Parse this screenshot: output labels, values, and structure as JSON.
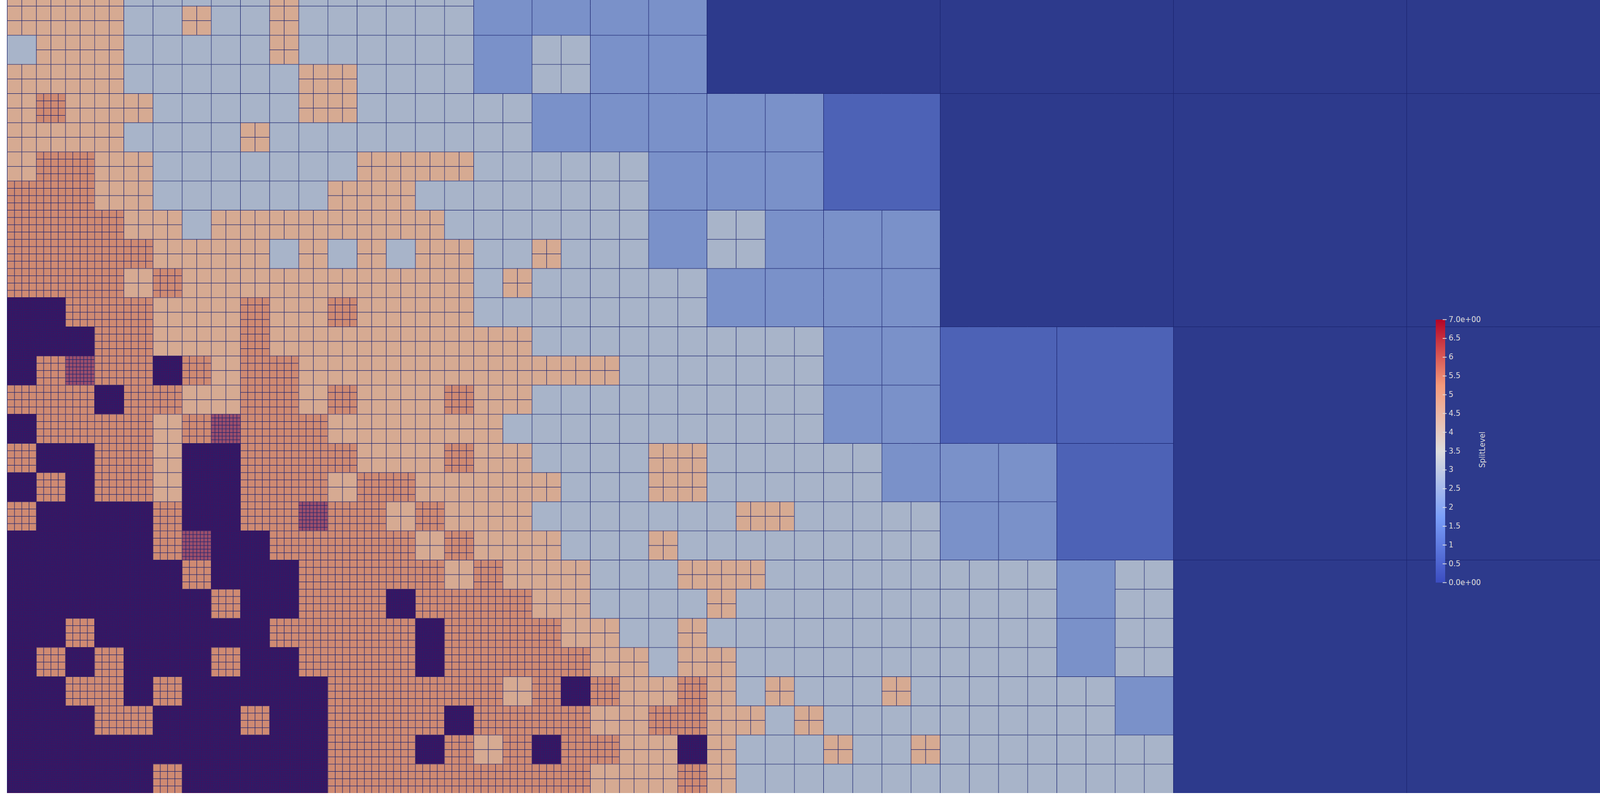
{
  "chart_data": {
    "type": "heatmap",
    "colors": [
      "#2d3a8c",
      "#4d62b6",
      "#7a91c9",
      "#a8b4c9",
      "#d6aa92",
      "#cf8a72",
      "#9c4e6a",
      "#4a0c58"
    ],
    "color_bar": {
      "title": "SplitLevel",
      "lim": [
        0,
        7
      ],
      "ticks": [
        {
          "value": 7,
          "label": "7.0e+00"
        },
        6.5,
        6,
        5.5,
        5,
        4.5,
        4,
        3.5,
        3,
        2.5,
        2,
        1.5,
        1,
        0.5,
        {
          "value": 0,
          "label": "0.0e+00"
        }
      ]
    },
    "cells": [
      [
        4,
        4,
        4,
        4,
        3,
        3,
        3,
        3,
        3,
        4,
        3,
        3,
        3,
        3,
        3,
        3,
        2,
        2,
        2,
        2,
        2,
        2,
        2,
        2,
        0,
        0,
        0,
        0,
        0,
        0,
        0,
        0,
        0,
        0,
        0,
        0,
        0,
        0,
        0,
        0,
        0,
        0,
        0,
        0,
        0,
        0,
        0,
        0,
        0,
        0,
        0,
        0,
        0,
        0,
        0
      ],
      [
        4,
        4,
        4,
        4,
        3,
        3,
        4,
        3,
        3,
        4,
        3,
        3,
        3,
        3,
        3,
        3,
        2,
        2,
        2,
        2,
        2,
        2,
        2,
        2,
        0,
        0,
        0,
        0,
        0,
        0,
        0,
        0,
        0,
        0,
        0,
        0,
        0,
        0,
        0,
        0,
        0,
        0,
        0,
        0,
        0,
        0,
        0,
        0,
        0,
        0,
        0,
        0,
        0,
        0,
        0
      ],
      [
        3,
        4,
        4,
        4,
        3,
        3,
        3,
        3,
        3,
        4,
        3,
        3,
        3,
        3,
        3,
        3,
        2,
        2,
        3,
        3,
        2,
        2,
        2,
        2,
        0,
        0,
        0,
        0,
        0,
        0,
        0,
        0,
        0,
        0,
        0,
        0,
        0,
        0,
        0,
        0,
        0,
        0,
        0,
        0,
        0,
        0,
        0,
        0,
        0,
        0,
        0,
        0,
        0,
        0,
        0
      ],
      [
        4,
        4,
        4,
        4,
        3,
        3,
        3,
        3,
        3,
        3,
        4,
        4,
        3,
        3,
        3,
        3,
        2,
        2,
        3,
        3,
        2,
        2,
        2,
        2,
        0,
        0,
        0,
        0,
        0,
        0,
        0,
        0,
        0,
        0,
        0,
        0,
        0,
        0,
        0,
        0,
        0,
        0,
        0,
        0,
        0,
        0,
        0,
        0,
        0,
        0,
        0,
        0,
        0,
        0,
        0
      ],
      [
        4,
        5,
        4,
        4,
        4,
        3,
        3,
        3,
        3,
        3,
        4,
        4,
        3,
        3,
        3,
        3,
        3,
        3,
        2,
        2,
        2,
        2,
        2,
        2,
        2,
        2,
        2,
        2,
        1,
        1,
        1,
        1,
        0,
        0,
        0,
        0,
        0,
        0,
        0,
        0,
        0,
        0,
        0,
        0,
        0,
        0,
        0,
        0,
        0,
        0,
        0,
        0,
        0,
        0,
        0
      ],
      [
        4,
        4,
        4,
        4,
        3,
        3,
        3,
        3,
        4,
        3,
        3,
        3,
        3,
        3,
        3,
        3,
        3,
        3,
        2,
        2,
        2,
        2,
        2,
        2,
        2,
        2,
        2,
        2,
        1,
        1,
        1,
        1,
        0,
        0,
        0,
        0,
        0,
        0,
        0,
        0,
        0,
        0,
        0,
        0,
        0,
        0,
        0,
        0,
        0,
        0,
        0,
        0,
        0,
        0,
        0
      ],
      [
        4,
        5,
        5,
        4,
        4,
        3,
        3,
        3,
        3,
        3,
        3,
        3,
        4,
        4,
        4,
        4,
        3,
        3,
        3,
        3,
        3,
        3,
        2,
        2,
        2,
        2,
        2,
        2,
        1,
        1,
        1,
        1,
        0,
        0,
        0,
        0,
        0,
        0,
        0,
        0,
        0,
        0,
        0,
        0,
        0,
        0,
        0,
        0,
        0,
        0,
        0,
        0,
        0,
        0,
        0
      ],
      [
        5,
        5,
        5,
        4,
        4,
        3,
        3,
        3,
        3,
        3,
        3,
        4,
        4,
        4,
        3,
        3,
        3,
        3,
        3,
        3,
        3,
        3,
        2,
        2,
        2,
        2,
        2,
        2,
        1,
        1,
        1,
        1,
        0,
        0,
        0,
        0,
        0,
        0,
        0,
        0,
        0,
        0,
        0,
        0,
        0,
        0,
        0,
        0,
        0,
        0,
        0,
        0,
        0,
        0,
        0
      ],
      [
        5,
        5,
        5,
        5,
        4,
        4,
        3,
        4,
        4,
        4,
        4,
        4,
        4,
        4,
        4,
        3,
        3,
        3,
        3,
        3,
        3,
        3,
        2,
        2,
        3,
        3,
        2,
        2,
        2,
        2,
        2,
        2,
        0,
        0,
        0,
        0,
        0,
        0,
        0,
        0,
        0,
        0,
        0,
        0,
        0,
        0,
        0,
        0,
        0,
        0,
        0,
        0,
        0,
        0,
        0
      ],
      [
        5,
        5,
        5,
        5,
        5,
        4,
        4,
        4,
        4,
        3,
        4,
        3,
        4,
        3,
        4,
        4,
        3,
        3,
        4,
        3,
        3,
        3,
        2,
        2,
        3,
        3,
        2,
        2,
        2,
        2,
        2,
        2,
        0,
        0,
        0,
        0,
        0,
        0,
        0,
        0,
        0,
        0,
        0,
        0,
        0,
        0,
        0,
        0,
        0,
        0,
        0,
        0,
        0,
        0,
        0
      ],
      [
        5,
        5,
        5,
        5,
        4,
        5,
        4,
        4,
        4,
        4,
        4,
        4,
        4,
        4,
        4,
        4,
        3,
        4,
        3,
        3,
        3,
        3,
        3,
        3,
        2,
        2,
        2,
        2,
        2,
        2,
        2,
        2,
        0,
        0,
        0,
        0,
        0,
        0,
        0,
        0,
        0,
        0,
        0,
        0,
        0,
        0,
        0,
        0,
        0,
        0,
        0,
        0,
        0,
        0,
        0
      ],
      [
        7,
        7,
        5,
        5,
        5,
        4,
        4,
        4,
        5,
        4,
        4,
        5,
        4,
        4,
        4,
        4,
        3,
        3,
        3,
        3,
        3,
        3,
        3,
        3,
        2,
        2,
        2,
        2,
        2,
        2,
        2,
        2,
        0,
        0,
        0,
        0,
        0,
        0,
        0,
        0,
        0,
        0,
        0,
        0,
        0,
        0,
        0,
        0,
        0,
        0,
        0,
        0,
        0,
        0,
        0
      ],
      [
        7,
        7,
        7,
        5,
        5,
        4,
        4,
        4,
        5,
        4,
        4,
        4,
        4,
        4,
        4,
        4,
        4,
        4,
        3,
        3,
        3,
        3,
        3,
        3,
        3,
        3,
        3,
        3,
        2,
        2,
        2,
        2,
        1,
        1,
        1,
        1,
        1,
        1,
        1,
        1,
        0,
        0,
        0,
        0,
        0,
        0,
        0,
        0,
        0,
        0,
        0,
        0,
        0,
        0,
        0
      ],
      [
        7,
        5,
        6,
        5,
        5,
        7,
        5,
        4,
        5,
        5,
        4,
        4,
        4,
        4,
        4,
        4,
        4,
        4,
        4,
        4,
        4,
        3,
        3,
        3,
        3,
        3,
        3,
        3,
        2,
        2,
        2,
        2,
        1,
        1,
        1,
        1,
        1,
        1,
        1,
        1,
        0,
        0,
        0,
        0,
        0,
        0,
        0,
        0,
        0,
        0,
        0,
        0,
        0,
        0,
        0
      ],
      [
        5,
        5,
        5,
        7,
        5,
        5,
        4,
        4,
        5,
        5,
        4,
        5,
        4,
        4,
        4,
        5,
        4,
        4,
        3,
        3,
        3,
        3,
        3,
        3,
        3,
        3,
        3,
        3,
        2,
        2,
        2,
        2,
        1,
        1,
        1,
        1,
        1,
        1,
        1,
        1,
        0,
        0,
        0,
        0,
        0,
        0,
        0,
        0,
        0,
        0,
        0,
        0,
        0,
        0,
        0
      ],
      [
        7,
        5,
        5,
        5,
        5,
        4,
        5,
        6,
        5,
        5,
        5,
        4,
        4,
        4,
        4,
        4,
        4,
        3,
        3,
        3,
        3,
        3,
        3,
        3,
        3,
        3,
        3,
        3,
        2,
        2,
        2,
        2,
        1,
        1,
        1,
        1,
        1,
        1,
        1,
        1,
        0,
        0,
        0,
        0,
        0,
        0,
        0,
        0,
        0,
        0,
        0,
        0,
        0,
        0,
        0
      ],
      [
        5,
        7,
        7,
        5,
        5,
        4,
        7,
        7,
        5,
        5,
        5,
        5,
        4,
        4,
        4,
        5,
        4,
        4,
        3,
        3,
        3,
        3,
        4,
        4,
        3,
        3,
        3,
        3,
        3,
        3,
        2,
        2,
        2,
        2,
        2,
        2,
        1,
        1,
        1,
        1,
        0,
        0,
        0,
        0,
        0,
        0,
        0,
        0,
        0,
        0,
        0,
        0,
        0,
        0,
        0
      ],
      [
        7,
        5,
        7,
        5,
        5,
        4,
        7,
        7,
        5,
        5,
        5,
        4,
        5,
        5,
        4,
        4,
        4,
        4,
        4,
        3,
        3,
        3,
        4,
        4,
        3,
        3,
        3,
        3,
        3,
        3,
        2,
        2,
        2,
        2,
        2,
        2,
        1,
        1,
        1,
        1,
        0,
        0,
        0,
        0,
        0,
        0,
        0,
        0,
        0,
        0,
        0,
        0,
        0,
        0,
        0
      ],
      [
        5,
        7,
        7,
        7,
        7,
        5,
        7,
        7,
        5,
        5,
        6,
        5,
        5,
        4,
        5,
        4,
        4,
        4,
        3,
        3,
        3,
        3,
        3,
        3,
        3,
        4,
        4,
        3,
        3,
        3,
        3,
        3,
        2,
        2,
        2,
        2,
        1,
        1,
        1,
        1,
        0,
        0,
        0,
        0,
        0,
        0,
        0,
        0,
        0,
        0,
        0,
        0,
        0,
        0,
        0
      ],
      [
        7,
        7,
        7,
        7,
        7,
        5,
        6,
        7,
        7,
        5,
        5,
        5,
        5,
        5,
        4,
        5,
        4,
        4,
        4,
        3,
        3,
        3,
        4,
        3,
        3,
        3,
        3,
        3,
        3,
        3,
        3,
        3,
        2,
        2,
        2,
        2,
        1,
        1,
        1,
        1,
        0,
        0,
        0,
        0,
        0,
        0,
        0,
        0,
        0,
        0,
        0,
        0,
        0,
        0,
        0
      ],
      [
        7,
        7,
        7,
        7,
        7,
        7,
        5,
        7,
        7,
        7,
        5,
        5,
        5,
        5,
        5,
        4,
        5,
        4,
        4,
        4,
        3,
        3,
        3,
        4,
        4,
        4,
        3,
        3,
        3,
        3,
        3,
        3,
        3,
        3,
        3,
        3,
        2,
        2,
        3,
        3,
        0,
        0,
        0,
        0,
        0,
        0,
        0,
        0,
        0,
        0,
        0,
        0,
        0,
        0,
        0
      ],
      [
        7,
        7,
        7,
        7,
        7,
        7,
        7,
        5,
        7,
        7,
        5,
        5,
        5,
        7,
        5,
        5,
        5,
        5,
        4,
        4,
        3,
        3,
        3,
        3,
        4,
        3,
        3,
        3,
        3,
        3,
        3,
        3,
        3,
        3,
        3,
        3,
        2,
        2,
        3,
        3,
        0,
        0,
        0,
        0,
        0,
        0,
        0,
        0,
        0,
        0,
        0,
        0,
        0,
        0,
        0
      ],
      [
        7,
        7,
        5,
        7,
        7,
        7,
        7,
        7,
        7,
        5,
        5,
        5,
        5,
        5,
        7,
        5,
        5,
        5,
        5,
        4,
        4,
        3,
        3,
        4,
        3,
        3,
        3,
        3,
        3,
        3,
        3,
        3,
        3,
        3,
        3,
        3,
        2,
        2,
        3,
        3,
        0,
        0,
        0,
        0,
        0,
        0,
        0,
        0,
        0,
        0,
        0,
        0,
        0,
        0,
        0
      ],
      [
        7,
        5,
        7,
        5,
        7,
        7,
        7,
        5,
        7,
        7,
        5,
        5,
        5,
        5,
        7,
        5,
        5,
        5,
        5,
        5,
        4,
        4,
        3,
        4,
        4,
        3,
        3,
        3,
        3,
        3,
        3,
        3,
        3,
        3,
        3,
        3,
        2,
        2,
        3,
        3,
        0,
        0,
        0,
        0,
        0,
        0,
        0,
        0,
        0,
        0,
        0,
        0,
        0,
        0,
        0
      ],
      [
        7,
        7,
        5,
        5,
        7,
        5,
        7,
        7,
        7,
        7,
        7,
        5,
        5,
        5,
        5,
        5,
        5,
        4,
        5,
        7,
        5,
        4,
        4,
        5,
        4,
        3,
        4,
        3,
        3,
        3,
        4,
        3,
        3,
        3,
        3,
        3,
        3,
        3,
        2,
        2,
        0,
        0,
        0,
        0,
        0,
        0,
        0,
        0,
        0,
        0,
        0,
        0,
        0,
        0,
        0
      ],
      [
        7,
        7,
        7,
        5,
        5,
        7,
        7,
        7,
        5,
        7,
        7,
        5,
        5,
        5,
        5,
        7,
        5,
        5,
        5,
        5,
        4,
        4,
        5,
        5,
        4,
        4,
        3,
        4,
        3,
        3,
        3,
        3,
        3,
        3,
        3,
        3,
        3,
        3,
        2,
        2,
        0,
        0,
        0,
        0,
        0,
        0,
        0,
        0,
        0,
        0,
        0,
        0,
        0,
        0,
        0
      ],
      [
        7,
        7,
        7,
        7,
        7,
        7,
        7,
        7,
        7,
        7,
        7,
        5,
        5,
        5,
        7,
        5,
        4,
        5,
        7,
        5,
        5,
        4,
        4,
        7,
        4,
        3,
        3,
        3,
        4,
        3,
        3,
        4,
        3,
        3,
        3,
        3,
        3,
        3,
        3,
        3,
        0,
        0,
        0,
        0,
        0,
        0,
        0,
        0,
        0,
        0,
        0,
        0,
        0,
        0,
        0
      ],
      [
        7,
        7,
        7,
        7,
        7,
        5,
        7,
        7,
        7,
        7,
        7,
        5,
        5,
        5,
        5,
        5,
        5,
        5,
        5,
        5,
        4,
        4,
        4,
        5,
        4,
        3,
        3,
        3,
        3,
        3,
        3,
        3,
        3,
        3,
        3,
        3,
        3,
        3,
        3,
        3,
        0,
        0,
        0,
        0,
        0,
        0,
        0,
        0,
        0,
        0,
        0,
        0,
        0,
        0,
        0
      ]
    ]
  }
}
